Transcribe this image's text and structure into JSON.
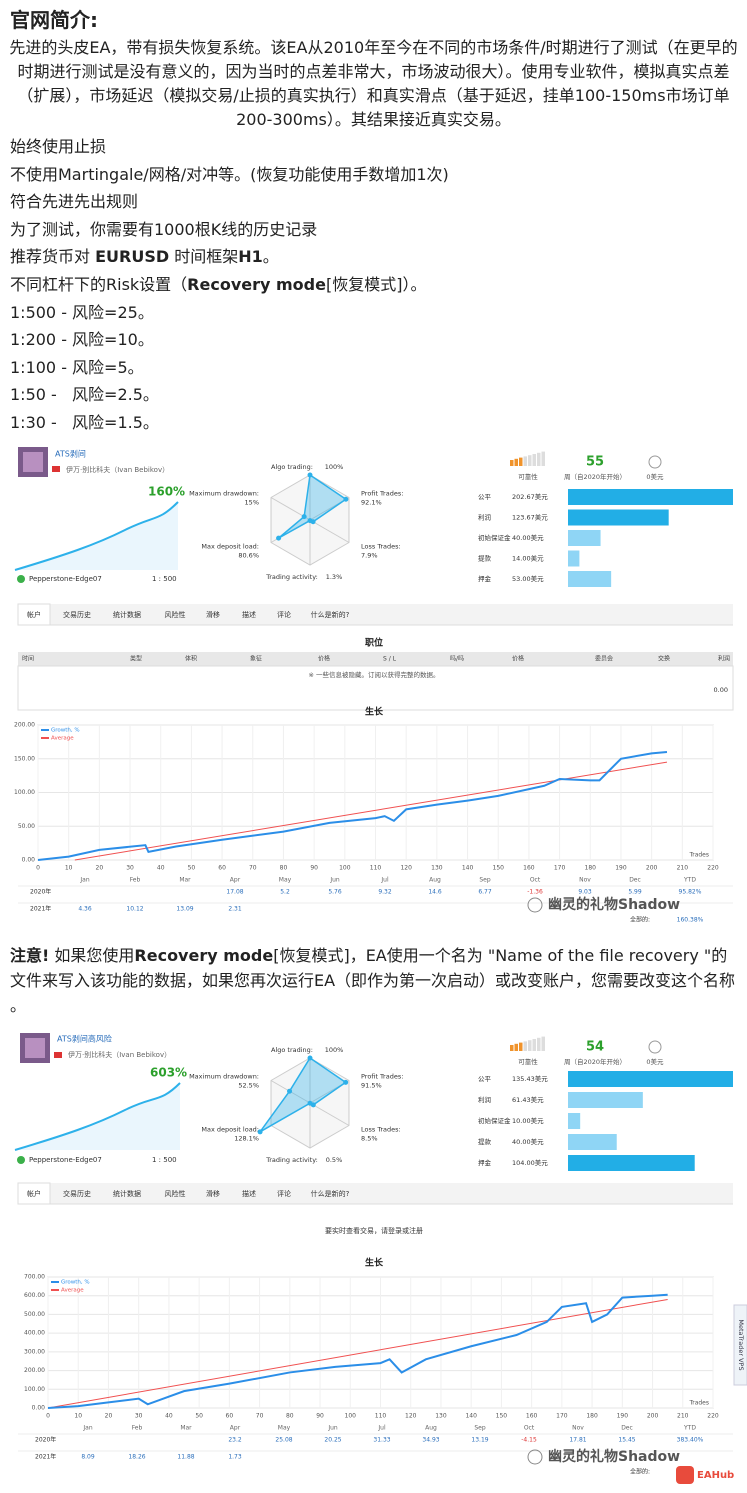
{
  "header": {
    "title": "官网简介:"
  },
  "intro": "先进的头皮EA，带有损失恢复系统。该EA从2010年至今在不同的市场条件/时期进行了测试（在更早的时期进行测试是没有意义的，因为当时的点差非常大，市场波动很大）。使用专业软件，模拟真实点差（扩展），市场延迟（模拟交易/止损的真实执行）和真实滑点（基于延迟，挂单100-150ms市场订单200-300ms）。其结果接近真实交易。",
  "items": [
    [
      {
        "text": "始终使用止损"
      }
    ],
    [
      {
        "text": "不使用Martingale/网格/对冲等。(恢复功能使用手数增加1次)"
      }
    ],
    [
      {
        "text": "符合先进先出规则"
      }
    ],
    [
      {
        "text": "为了测试，你需要有1000根K线的历史记录"
      }
    ],
    [
      {
        "text": "推荐货币对 "
      },
      {
        "text": "EURUSD",
        "bold": true
      },
      {
        "text": " 时间框架"
      },
      {
        "text": "H1",
        "bold": true
      },
      {
        "text": "。"
      }
    ],
    [
      {
        "text": "不同杠杆下的Risk设置（"
      },
      {
        "text": "Recovery mode",
        "bold": true
      },
      {
        "text": "[恢复模式]）。"
      }
    ],
    [
      {
        "text": "1:500 - 风险=25。"
      }
    ],
    [
      {
        "text": "1:200 - 风险=10。"
      }
    ],
    [
      {
        "text": "1:100 - 风险=5。"
      }
    ],
    [
      {
        "text": "1:50 -   风险=2.5。"
      }
    ],
    [
      {
        "text": "1:30 -   风险=1.5。"
      }
    ]
  ],
  "note": [
    {
      "text": "注意!",
      "bold": true
    },
    {
      "text": " 如果您使用"
    },
    {
      "text": "Recovery mode",
      "bold": true
    },
    {
      "text": "[恢复模式]，EA使用一个名为 \"Name of the file recovery \"的文件来写入该功能的数据，如果您再次运行EA（即作为第一次启动）或改变账户，您需要改变这个名称 。"
    }
  ],
  "watermark": "幽灵的礼物Shadow",
  "badge": "EAHub",
  "panels": [
    {
      "name": "ATS剥间",
      "author": "伊万·别比科夫（Ivan Bebikov）",
      "growth_label": "160%",
      "broker": "Pepperstone-Edge07",
      "leverage": "1 : 500",
      "radar": [
        {
          "name": "Algo trading:",
          "value": 100,
          "value_label": "100%"
        },
        {
          "name": "Profit Trades:",
          "value": 92.1,
          "value_label": "92.1%"
        },
        {
          "name": "Loss Trades:",
          "value": 7.9,
          "value_label": "7.9%"
        },
        {
          "name": "Trading activity:",
          "value": 1.3,
          "value_label": "1.3%"
        },
        {
          "name": "Max deposit load:",
          "value": 80.6,
          "value_label": "80.6%"
        },
        {
          "name": "Maximum drawdown:",
          "value": 15,
          "value_label": "15%"
        }
      ],
      "stats": {
        "reliability": "可靠性",
        "weeks": 55,
        "weeks_label": "周（自2020年开始）",
        "price": "0美元"
      },
      "bars": {
        "labels": [
          "公平",
          "利润",
          "初始保证金",
          "提款",
          "押金"
        ],
        "values": [
          202.67,
          123.67,
          40.0,
          14.0,
          53.0
        ],
        "value_labels": [
          "202.67美元",
          "123.67美元",
          "40.00美元",
          "14.00美元",
          "53.00美元"
        ],
        "colors": [
          "#22aee6",
          "#22aee6",
          "#8fd5f5",
          "#8fd5f5",
          "#8fd5f5"
        ]
      },
      "tabs": [
        "帐户",
        "交易历史",
        "统计数据",
        "风险性",
        "滑移",
        "描述",
        "评论",
        "什么是新的?"
      ],
      "positions": {
        "title": "职位",
        "headers": [
          "时间",
          "类型",
          "体积",
          "象征",
          "价格",
          "S / L",
          "吗/吗",
          "价格",
          "委员会",
          "交换",
          "利润"
        ],
        "message": "※ 一些信息被隐藏。订阅以获得完整的数据。",
        "total": "0.00"
      },
      "chart": {
        "title": "生长",
        "xlabel": "Trades",
        "xlim": [
          0,
          220
        ],
        "ylim": [
          0,
          200
        ],
        "xticks": [
          0,
          10,
          20,
          30,
          40,
          50,
          60,
          70,
          80,
          90,
          100,
          110,
          120,
          130,
          140,
          150,
          160,
          170,
          180,
          190,
          200,
          210,
          220
        ],
        "yticks": [
          {
            "value": 0,
            "label": "0.00"
          },
          {
            "value": 50,
            "label": "50.00"
          },
          {
            "value": 100,
            "label": "100.00"
          },
          {
            "value": 150,
            "label": "150.00"
          },
          {
            "value": 200,
            "label": "200.00"
          }
        ],
        "series": [
          {
            "name": "Growth, %",
            "color": "#2b8ee8",
            "x": [
              0,
              10,
              20,
              35,
              36,
              45,
              60,
              80,
              95,
              110,
              113,
              116,
              120,
              130,
              140,
              150,
              165,
              170,
              180,
              183,
              190,
              200,
              205
            ],
            "y": [
              0,
              5,
              15,
              22,
              12,
              20,
              30,
              42,
              55,
              62,
              65,
              58,
              75,
              82,
              88,
              95,
              110,
              120,
              118,
              118,
              150,
              158,
              160
            ]
          },
          {
            "name": "Average",
            "color": "#f05050",
            "x": [
              12,
              205
            ],
            "y": [
              0,
              145
            ]
          }
        ]
      },
      "table": {
        "months": [
          "Jan",
          "Feb",
          "Mar",
          "Apr",
          "May",
          "Jun",
          "Jul",
          "Aug",
          "Sep",
          "Oct",
          "Nov",
          "Dec",
          "YTD"
        ],
        "rows": [
          {
            "year": "2020年",
            "values": [
              null,
              null,
              null,
              17.08,
              5.2,
              5.76,
              9.32,
              14.6,
              6.77,
              -1.36,
              9.03,
              5.99
            ],
            "ytd": "95.82%"
          },
          {
            "year": "2021年",
            "values": [
              4.36,
              10.12,
              13.09,
              2.31,
              null,
              null,
              null,
              null,
              null,
              null,
              null,
              null
            ],
            "ytd": null
          }
        ],
        "total_label": "全部的:",
        "total": "160.38%"
      }
    },
    {
      "name": "ATS剥间高风险",
      "author": "伊万·别比科夫（Ivan Bebikov）",
      "growth_label": "603%",
      "broker": "Pepperstone-Edge07",
      "leverage": "1 : 500",
      "radar": [
        {
          "name": "Algo trading:",
          "value": 100,
          "value_label": "100%"
        },
        {
          "name": "Profit Trades:",
          "value": 91.5,
          "value_label": "91.5%"
        },
        {
          "name": "Loss Trades:",
          "value": 8.5,
          "value_label": "8.5%"
        },
        {
          "name": "Trading activity:",
          "value": 0.5,
          "value_label": "0.5%"
        },
        {
          "name": "Max deposit load:",
          "value": 128.1,
          "value_label": "128.1%"
        },
        {
          "name": "Maximum drawdown:",
          "value": 52.5,
          "value_label": "52.5%"
        }
      ],
      "stats": {
        "reliability": "可靠性",
        "weeks": 54,
        "weeks_label": "周（自2020年开始）",
        "price": "0美元"
      },
      "bars": {
        "labels": [
          "公平",
          "利润",
          "初始保证金",
          "提款",
          "押金"
        ],
        "values": [
          135.43,
          61.43,
          10.0,
          40.0,
          104.0
        ],
        "value_labels": [
          "135.43美元",
          "61.43美元",
          "10.00美元",
          "40.00美元",
          "104.00美元"
        ],
        "colors": [
          "#22aee6",
          "#8fd5f5",
          "#8fd5f5",
          "#8fd5f5",
          "#22aee6"
        ]
      },
      "tabs": [
        "帐户",
        "交易历史",
        "统计数据",
        "风险性",
        "滑移",
        "描述",
        "评论",
        "什么是新的?"
      ],
      "message": "要实时查看交易，请登录或注册",
      "side_tab": "MetaTrader VPS",
      "chart": {
        "title": "生长",
        "xlabel": "Trades",
        "xlim": [
          0,
          220
        ],
        "ylim": [
          0,
          700
        ],
        "xticks": [
          0,
          10,
          20,
          30,
          40,
          50,
          60,
          70,
          80,
          90,
          100,
          110,
          120,
          130,
          140,
          150,
          160,
          170,
          180,
          190,
          200,
          210,
          220
        ],
        "yticks": [
          {
            "value": 0,
            "label": "0.00"
          },
          {
            "value": 100,
            "label": "100.00"
          },
          {
            "value": 200,
            "label": "200.00"
          },
          {
            "value": 300,
            "label": "300.00"
          },
          {
            "value": 400,
            "label": "400.00"
          },
          {
            "value": 500,
            "label": "500.00"
          },
          {
            "value": 600,
            "label": "600.00"
          },
          {
            "value": 700,
            "label": "700.00"
          }
        ],
        "series": [
          {
            "name": "Growth, %",
            "color": "#2b8ee8",
            "x": [
              0,
              10,
              20,
              30,
              33,
              45,
              60,
              80,
              95,
              110,
              113,
              117,
              125,
              140,
              155,
              165,
              170,
              178,
              180,
              185,
              190,
              200,
              205
            ],
            "y": [
              0,
              10,
              30,
              50,
              20,
              90,
              130,
              190,
              220,
              240,
              260,
              190,
              260,
              330,
              390,
              460,
              540,
              560,
              460,
              500,
              590,
              600,
              605
            ]
          },
          {
            "name": "Average",
            "color": "#f05050",
            "x": [
              0,
              205
            ],
            "y": [
              0,
              580
            ]
          }
        ]
      },
      "table": {
        "months": [
          "Jan",
          "Feb",
          "Mar",
          "Apr",
          "May",
          "Jun",
          "Jul",
          "Aug",
          "Sep",
          "Oct",
          "Nov",
          "Dec",
          "YTD"
        ],
        "rows": [
          {
            "year": "2020年",
            "values": [
              null,
              null,
              null,
              23.2,
              25.08,
              20.25,
              31.33,
              34.93,
              13.19,
              -4.15,
              17.81,
              15.45
            ],
            "ytd": "383.40%"
          },
          {
            "year": "2021年",
            "values": [
              8.09,
              18.26,
              11.88,
              1.73,
              null,
              null,
              null,
              null,
              null,
              null,
              null,
              null
            ],
            "ytd": null
          }
        ],
        "total_label": "全部的:"
      }
    }
  ]
}
